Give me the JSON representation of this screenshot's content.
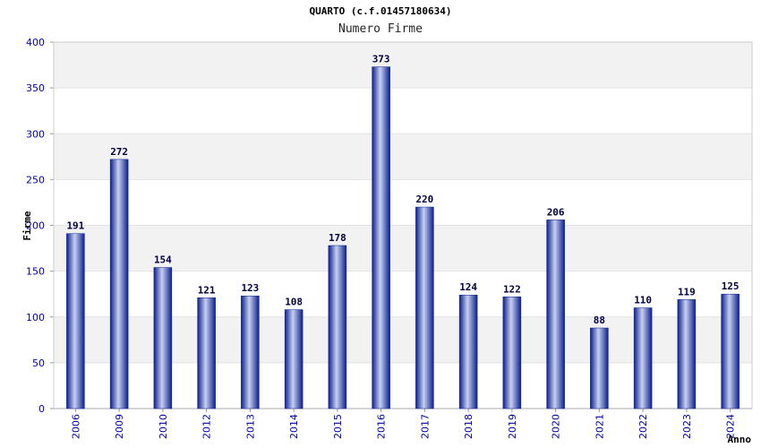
{
  "chart_data": {
    "type": "bar",
    "title": "QUARTO (c.f.01457180634)",
    "subtitle": "Numero Firme",
    "xlabel": "Anno",
    "ylabel": "Firme",
    "categories": [
      "2006",
      "2009",
      "2010",
      "2012",
      "2013",
      "2014",
      "2015",
      "2016",
      "2017",
      "2018",
      "2019",
      "2020",
      "2021",
      "2022",
      "2023",
      "2024"
    ],
    "values": [
      191,
      272,
      154,
      121,
      123,
      108,
      178,
      373,
      220,
      124,
      122,
      206,
      88,
      110,
      119,
      125
    ],
    "ylim": [
      0,
      400
    ],
    "yticks": [
      0,
      50,
      100,
      150,
      200,
      250,
      300,
      350,
      400
    ],
    "grid": true,
    "colors": {
      "bar_dark": "#0a1f8f",
      "bar_light": "#c8d0ee",
      "band": "#f2f2f2",
      "tick_text": "#0000aa",
      "value_text": "#000044"
    }
  }
}
